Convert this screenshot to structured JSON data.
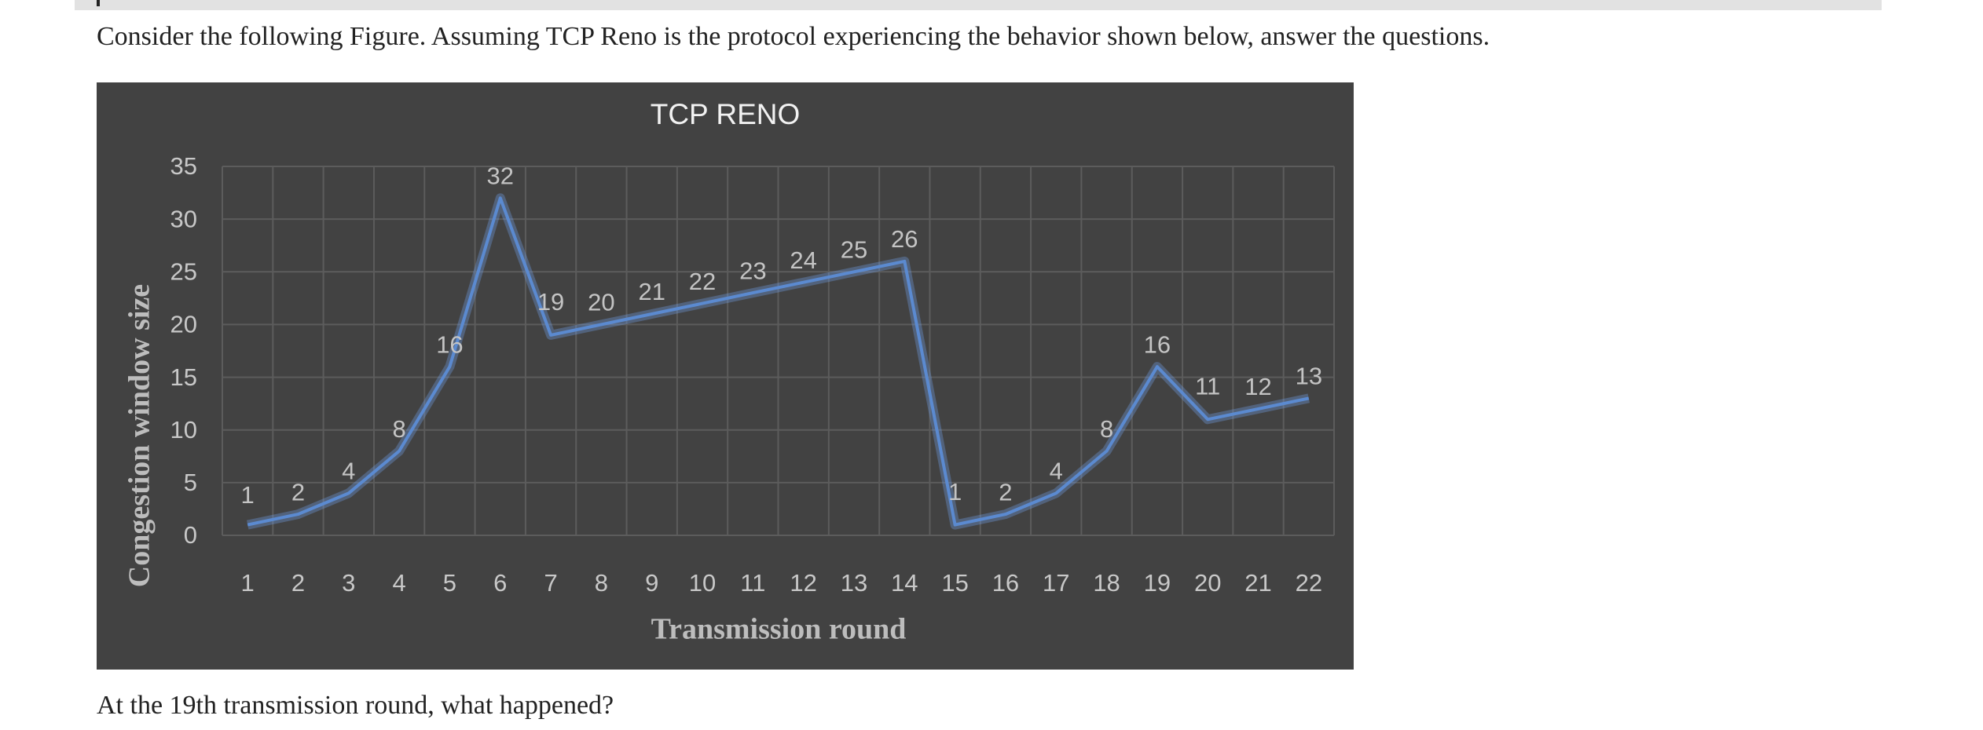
{
  "page": {
    "intro": "Consider the following Figure. Assuming TCP Reno is the protocol experiencing the behavior shown below, answer the questions.",
    "question": "At the 19th transmission round, what happened?"
  },
  "chart_data": {
    "type": "line",
    "title": "TCP RENO",
    "xlabel": "Transmission round",
    "ylabel": "Congestion window size",
    "x": [
      1,
      2,
      3,
      4,
      5,
      6,
      7,
      8,
      9,
      10,
      11,
      12,
      13,
      14,
      15,
      16,
      17,
      18,
      19,
      20,
      21,
      22
    ],
    "yticks": [
      0,
      5,
      10,
      15,
      20,
      25,
      30,
      35
    ],
    "ylim": [
      0,
      35
    ],
    "grid": true,
    "legend": "none",
    "series": [
      {
        "values": [
          1,
          2,
          4,
          8,
          16,
          32,
          19,
          20,
          21,
          22,
          23,
          24,
          25,
          26,
          1,
          2,
          4,
          8,
          16,
          11,
          12,
          13
        ]
      }
    ],
    "colors": {
      "background": "#424242",
      "line": "#5b8ad0",
      "grid": "#5c5c5c",
      "text": "#c8c8c8"
    }
  }
}
